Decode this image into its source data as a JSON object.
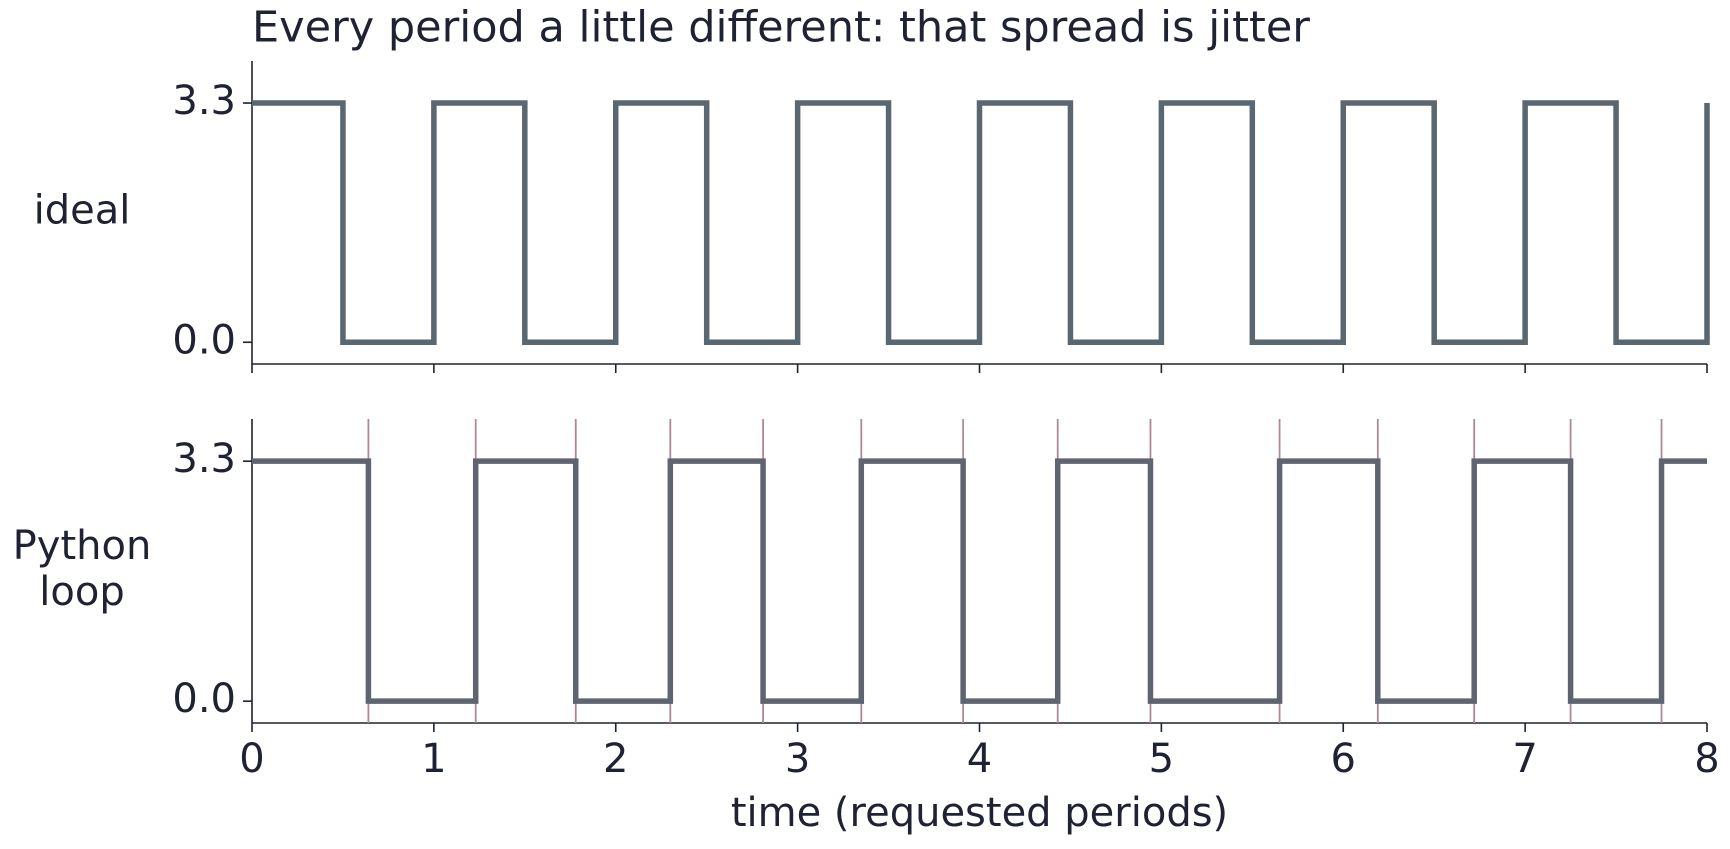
{
  "chart_data": [
    {
      "type": "step",
      "title": "Every period a little different: that spread is jitter",
      "ylabel": [
        "ideal"
      ],
      "x": [
        0,
        0.5,
        1,
        1.5,
        2,
        2.5,
        3,
        3.5,
        4,
        4.5,
        5,
        5.5,
        6,
        6.5,
        7,
        7.5,
        8
      ],
      "values": [
        3.3,
        0,
        3.3,
        0,
        3.3,
        0,
        3.3,
        0,
        3.3,
        0,
        3.3,
        0,
        3.3,
        0,
        3.3,
        0,
        3.3
      ],
      "color": "#5a6670",
      "xlim": [
        0,
        8
      ],
      "xticks": [
        0,
        1,
        2,
        3,
        4,
        5,
        6,
        7,
        8
      ],
      "xtick_labels": false,
      "ylim": [
        -0.3,
        3.88
      ],
      "yticks": [
        {
          "value": 0,
          "label": "0.0"
        },
        3.3
      ]
    },
    {
      "type": "step",
      "ylabel": [
        "Python",
        "loop"
      ],
      "xlabel": "time (requested periods)",
      "x": [
        0,
        0.64,
        1.23,
        1.78,
        2.3,
        2.81,
        3.35,
        3.91,
        4.43,
        4.94,
        5.65,
        6.19,
        6.72,
        7.25,
        7.75,
        8
      ],
      "values": [
        3.3,
        0,
        3.3,
        0,
        3.3,
        0,
        3.3,
        0,
        3.3,
        0,
        3.3,
        0,
        3.3,
        0,
        3.3,
        3.3
      ],
      "color": "#5f6470",
      "edge_lines": true,
      "edge_color": "#b08797",
      "xlim": [
        0,
        8
      ],
      "xticks": [
        0,
        1,
        2,
        3,
        4,
        5,
        6,
        7,
        8
      ],
      "xtick_labels": true,
      "ylim": [
        -0.3,
        3.88
      ],
      "yticks": [
        {
          "value": 0,
          "label": "0.0"
        },
        3.3
      ]
    }
  ]
}
